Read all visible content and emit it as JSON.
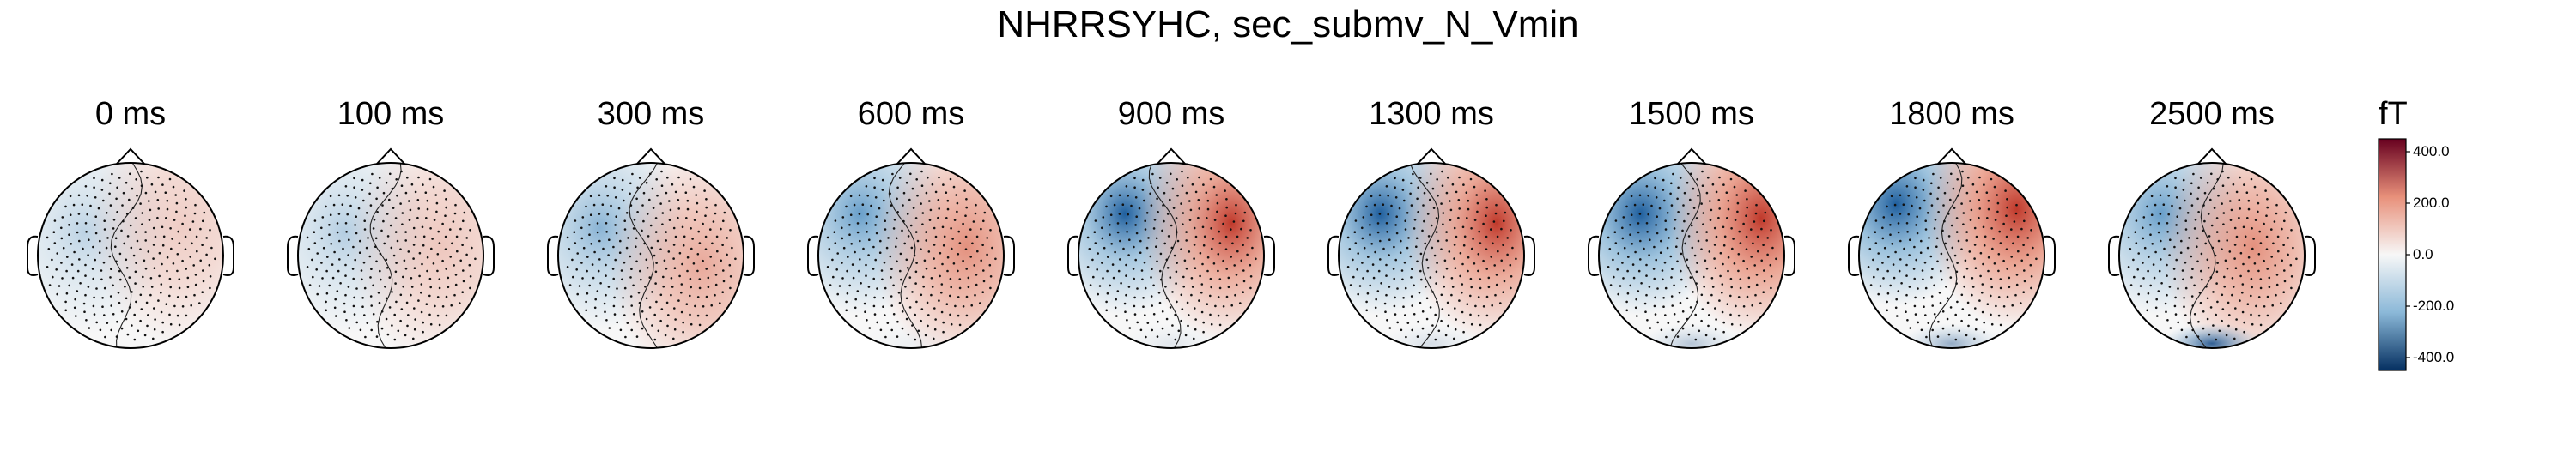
{
  "figure": {
    "title": "NHRRSYHC, sec_submv_N_Vmin"
  },
  "panels": [
    {
      "label": "0 ms",
      "time_ms": 0,
      "strength": 0.05,
      "bluePos": [
        -0.5,
        0.25
      ],
      "redPos": [
        0.55,
        0.3
      ],
      "bottomBlue": 0.0
    },
    {
      "label": "100 ms",
      "time_ms": 100,
      "strength": 0.1,
      "bluePos": [
        -0.5,
        0.25
      ],
      "redPos": [
        0.55,
        0.1
      ],
      "bottomBlue": 0.0
    },
    {
      "label": "300 ms",
      "time_ms": 300,
      "strength": 0.35,
      "bluePos": [
        -0.55,
        0.3
      ],
      "redPos": [
        0.55,
        -0.1
      ],
      "bottomBlue": 0.0
    },
    {
      "label": "600 ms",
      "time_ms": 600,
      "strength": 0.55,
      "bluePos": [
        -0.55,
        0.45
      ],
      "redPos": [
        0.6,
        0.1
      ],
      "bottomBlue": 0.05
    },
    {
      "label": "900 ms",
      "time_ms": 900,
      "strength": 0.75,
      "bluePos": [
        -0.5,
        0.45
      ],
      "redPos": [
        0.65,
        0.35
      ],
      "bottomBlue": 0.1
    },
    {
      "label": "1300 ms",
      "time_ms": 1300,
      "strength": 0.8,
      "bluePos": [
        -0.55,
        0.45
      ],
      "redPos": [
        0.7,
        0.35
      ],
      "bottomBlue": 0.15
    },
    {
      "label": "1500 ms",
      "time_ms": 1500,
      "strength": 0.9,
      "bluePos": [
        -0.55,
        0.45
      ],
      "redPos": [
        0.75,
        0.4
      ],
      "bottomBlue": 0.3
    },
    {
      "label": "1800 ms",
      "time_ms": 1800,
      "strength": 0.95,
      "bluePos": [
        -0.6,
        0.55
      ],
      "redPos": [
        0.7,
        0.5
      ],
      "bottomBlue": 0.45
    },
    {
      "label": "2500 ms",
      "time_ms": 2500,
      "strength": 0.55,
      "bluePos": [
        -0.55,
        0.45
      ],
      "redPos": [
        0.45,
        0.1
      ],
      "bottomBlue": 0.9
    }
  ],
  "colorbar": {
    "unit": "fT",
    "ticks": [
      "400.0",
      "200.0",
      "0.0",
      "-200.0",
      "-400.0"
    ],
    "tick_values": [
      400,
      200,
      0,
      -200,
      -400
    ],
    "range": [
      -450,
      450
    ],
    "colormap": "RdBu_r",
    "colors": {
      "max": "#67001f",
      "pos": "#e8907a",
      "mid": "#f7f7f7",
      "neg": "#8bb8d8",
      "min": "#053061"
    }
  }
}
